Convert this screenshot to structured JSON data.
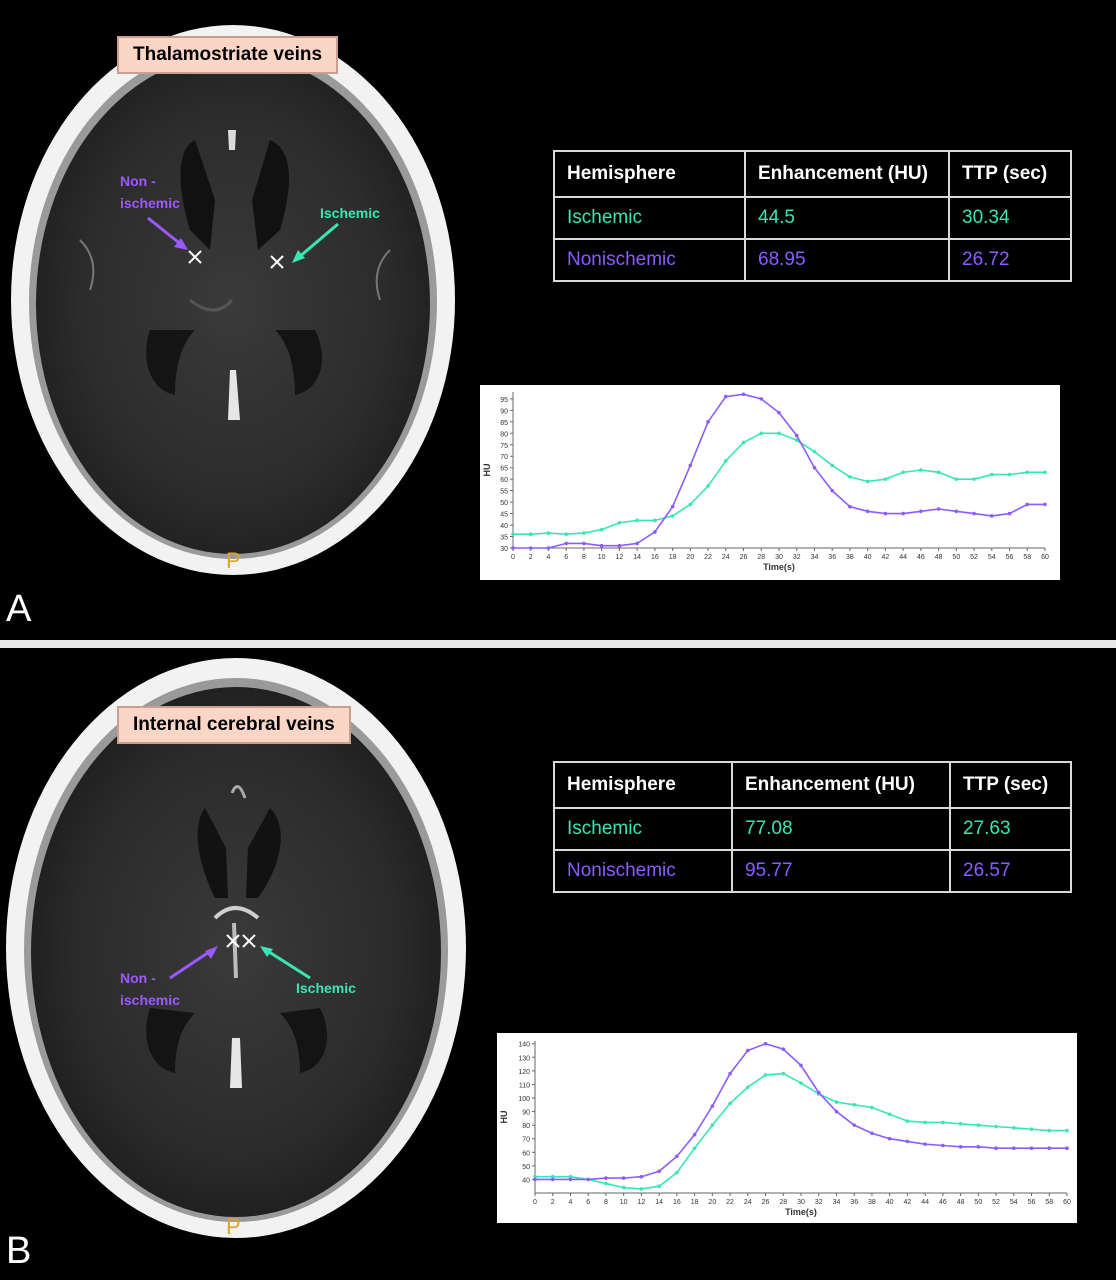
{
  "colors": {
    "ischemic": "#38e6b5",
    "nonischemic": "#8b5cff",
    "label_bg": "#fbd6c6"
  },
  "panels": [
    {
      "letter": "A",
      "vein_label": "Thalamostriate veins",
      "annotation_nonischemic": [
        "Non -",
        "ischemic"
      ],
      "annotation_ischemic": "Ischemic",
      "orientation_marker": "P",
      "table": {
        "headers": [
          "Hemisphere",
          "Enhancement (HU)",
          "TTP (sec)"
        ],
        "rows": [
          {
            "hemisphere": "Ischemic",
            "enhancement": "44.5",
            "ttp": "30.34"
          },
          {
            "hemisphere": "Nonischemic",
            "enhancement": "68.95",
            "ttp": "26.72"
          }
        ]
      }
    },
    {
      "letter": "B",
      "vein_label": "Internal cerebral veins",
      "annotation_nonischemic": [
        "Non -",
        "ischemic"
      ],
      "annotation_ischemic": "Ischemic",
      "orientation_marker": "P",
      "table": {
        "headers": [
          "Hemisphere",
          "Enhancement (HU)",
          "TTP (sec)"
        ],
        "rows": [
          {
            "hemisphere": "Ischemic",
            "enhancement": "77.08",
            "ttp": "27.63"
          },
          {
            "hemisphere": "Nonischemic",
            "enhancement": "95.77",
            "ttp": "26.57"
          }
        ]
      }
    }
  ],
  "chart_data": [
    {
      "type": "line",
      "xlabel": "Time(s)",
      "ylabel": "HU",
      "xlim": [
        0,
        60
      ],
      "ylim": [
        30,
        98
      ],
      "xticks": [
        0,
        2,
        4,
        6,
        8,
        10,
        12,
        14,
        16,
        18,
        20,
        22,
        24,
        26,
        28,
        30,
        32,
        34,
        36,
        38,
        40,
        42,
        44,
        46,
        48,
        50,
        52,
        54,
        56,
        58,
        60
      ],
      "yticks": [
        30,
        35,
        40,
        45,
        50,
        55,
        60,
        65,
        70,
        75,
        80,
        85,
        90,
        95
      ],
      "grid": false,
      "series": [
        {
          "color": "#38e6b5",
          "x": [
            0,
            2,
            4,
            6,
            8,
            10,
            12,
            14,
            16,
            18,
            20,
            22,
            24,
            26,
            28,
            30,
            32,
            34,
            36,
            38,
            40,
            42,
            44,
            46,
            48,
            50,
            52,
            54,
            56,
            58,
            60
          ],
          "y": [
            36,
            36,
            36.5,
            36,
            36.5,
            38,
            41,
            42,
            42,
            44,
            49,
            57,
            68,
            76,
            80,
            80,
            77,
            72,
            66,
            61,
            59,
            60,
            63,
            64,
            63,
            60,
            60,
            62,
            62,
            63,
            63
          ]
        },
        {
          "color": "#8b5cff",
          "x": [
            0,
            2,
            4,
            6,
            8,
            10,
            12,
            14,
            16,
            18,
            20,
            22,
            24,
            26,
            28,
            30,
            32,
            34,
            36,
            38,
            40,
            42,
            44,
            46,
            48,
            50,
            52,
            54,
            56,
            58,
            60
          ],
          "y": [
            28,
            28,
            30,
            32,
            32,
            31,
            31,
            32,
            37,
            48,
            66,
            85,
            96,
            97,
            95,
            89,
            79,
            65,
            55,
            48,
            46,
            45,
            45,
            46,
            47,
            46,
            45,
            44,
            45,
            49,
            49
          ]
        }
      ]
    },
    {
      "type": "line",
      "xlabel": "Time(s)",
      "ylabel": "HU",
      "xlim": [
        0,
        60
      ],
      "ylim": [
        30,
        142
      ],
      "xticks": [
        0,
        2,
        4,
        6,
        8,
        10,
        12,
        14,
        16,
        18,
        20,
        22,
        24,
        26,
        28,
        30,
        32,
        34,
        36,
        38,
        40,
        42,
        44,
        46,
        48,
        50,
        52,
        54,
        56,
        58,
        60
      ],
      "yticks": [
        40,
        50,
        60,
        70,
        80,
        90,
        100,
        110,
        120,
        130,
        140
      ],
      "grid": false,
      "series": [
        {
          "color": "#38e6b5",
          "x": [
            0,
            2,
            4,
            6,
            8,
            10,
            12,
            14,
            16,
            18,
            20,
            22,
            24,
            26,
            28,
            30,
            32,
            34,
            36,
            38,
            40,
            42,
            44,
            46,
            48,
            50,
            52,
            54,
            56,
            58,
            60
          ],
          "y": [
            42,
            42,
            42,
            40,
            37,
            34,
            33,
            35,
            45,
            63,
            80,
            96,
            108,
            117,
            118,
            111,
            103,
            97,
            95,
            93,
            88,
            83,
            82,
            82,
            81,
            80,
            79,
            78,
            77,
            76,
            76
          ]
        },
        {
          "color": "#8b5cff",
          "x": [
            0,
            2,
            4,
            6,
            8,
            10,
            12,
            14,
            16,
            18,
            20,
            22,
            24,
            26,
            28,
            30,
            32,
            34,
            36,
            38,
            40,
            42,
            44,
            46,
            48,
            50,
            52,
            54,
            56,
            58,
            60
          ],
          "y": [
            40,
            40,
            40,
            40,
            41,
            41,
            42,
            46,
            57,
            73,
            94,
            118,
            135,
            140,
            136,
            124,
            104,
            90,
            80,
            74,
            70,
            68,
            66,
            65,
            64,
            64,
            63,
            63,
            63,
            63,
            63
          ]
        }
      ]
    }
  ]
}
